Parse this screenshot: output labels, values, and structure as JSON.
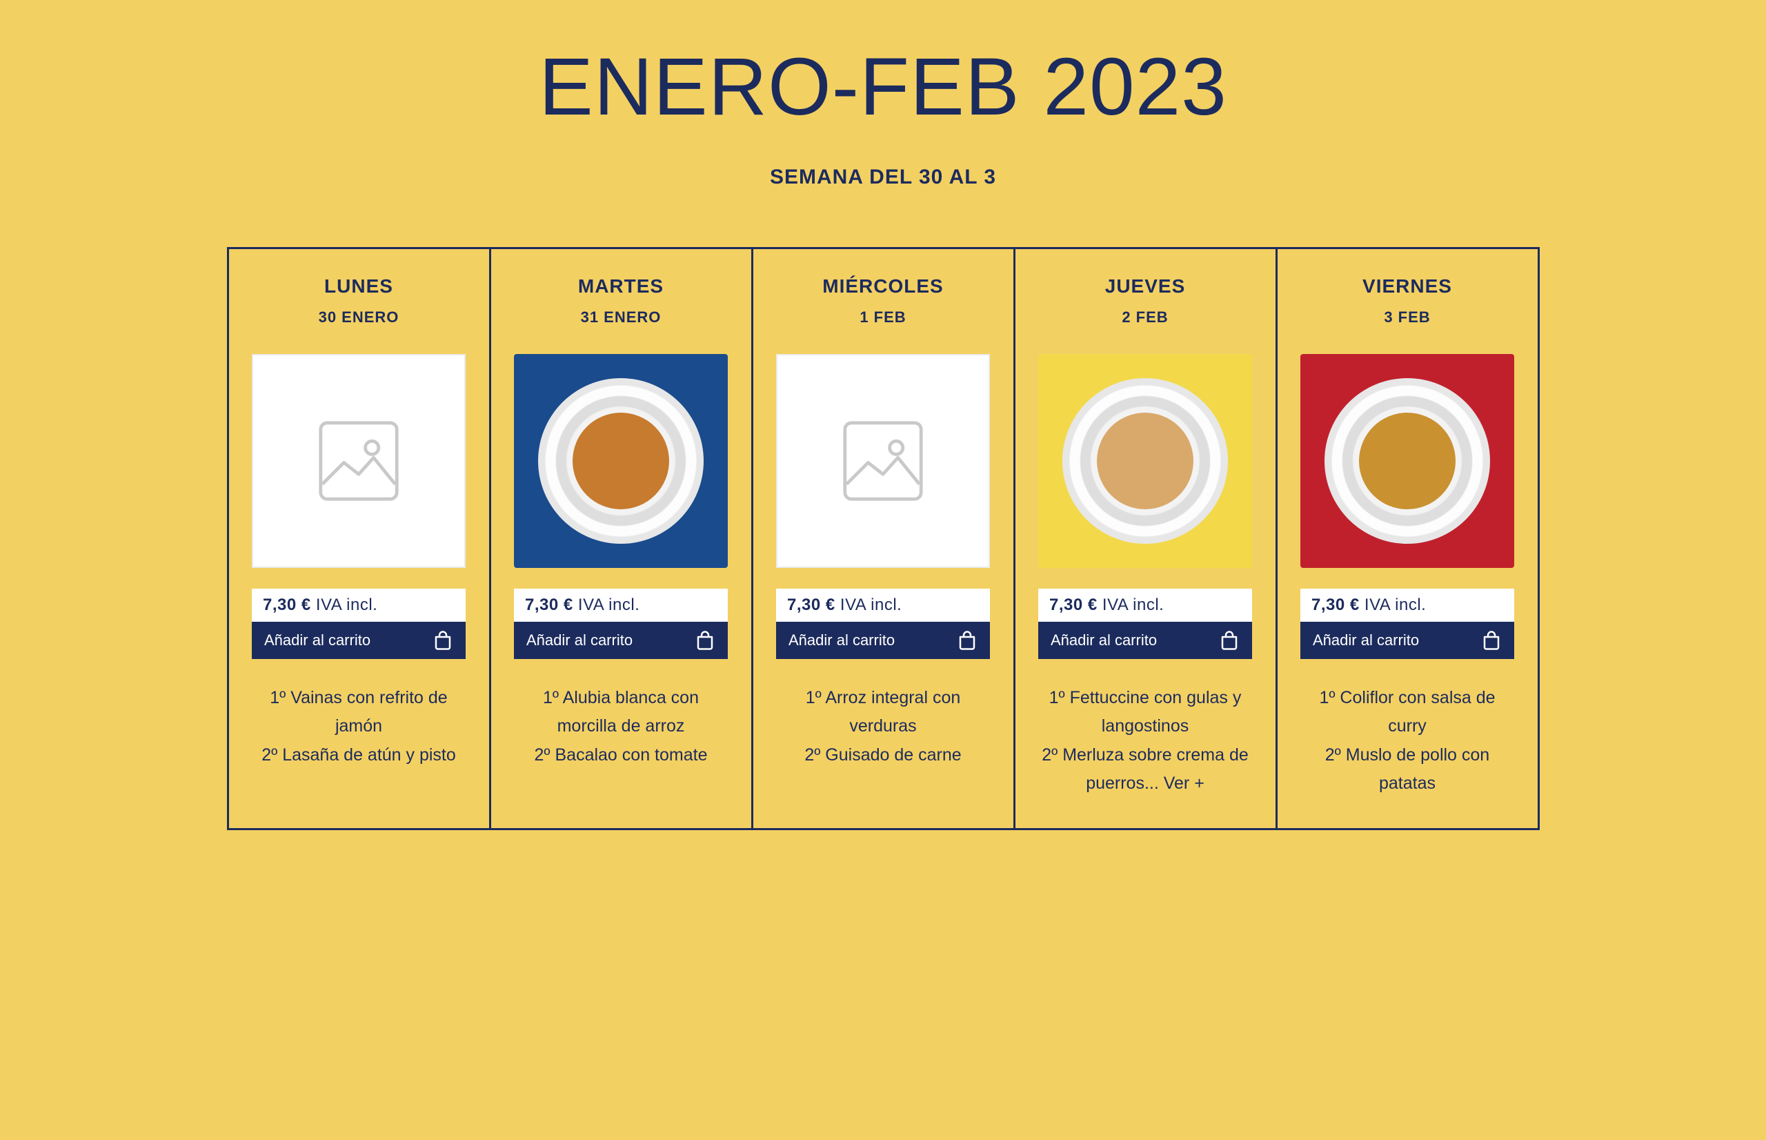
{
  "title": "ENERO-FEB 2023",
  "subtitle": "SEMANA DEL 30 AL 3",
  "price_suffix": "IVA incl.",
  "add_to_cart_label": "Añadir al carrito",
  "colors": {
    "bg": "#f3d062",
    "navy": "#1c2b5d",
    "white": "#ffffff"
  },
  "days": [
    {
      "name": "LUNES",
      "date": "30 ENERO",
      "price": "7,30 €",
      "image": {
        "type": "placeholder",
        "bg": "#ffffff"
      },
      "menu": "1º Vainas con refrito de jamón\n2º Lasaña de atún y pisto"
    },
    {
      "name": "MARTES",
      "date": "31 ENERO",
      "price": "7,30 €",
      "image": {
        "type": "plate",
        "bg": "#1a4b8c",
        "food": "#c77b2e"
      },
      "menu": "1º Alubia blanca con morcilla de arroz\n2º Bacalao con tomate"
    },
    {
      "name": "MIÉRCOLES",
      "date": "1 FEB",
      "price": "7,30 €",
      "image": {
        "type": "placeholder",
        "bg": "#ffffff"
      },
      "menu": "1º Arroz integral con verduras\n2º Guisado de carne"
    },
    {
      "name": "JUEVES",
      "date": "2 FEB",
      "price": "7,30 €",
      "image": {
        "type": "plate",
        "bg": "#f3d94a",
        "food": "#d9a96b"
      },
      "menu": "1º Fettuccine con gulas y langostinos\n2º Merluza sobre crema de puerros... Ver +"
    },
    {
      "name": "VIERNES",
      "date": "3 FEB",
      "price": "7,30 €",
      "image": {
        "type": "plate",
        "bg": "#c0202c",
        "food": "#c9912f"
      },
      "menu": "1º Coliflor con salsa de curry\n2º Muslo de pollo con patatas"
    }
  ]
}
